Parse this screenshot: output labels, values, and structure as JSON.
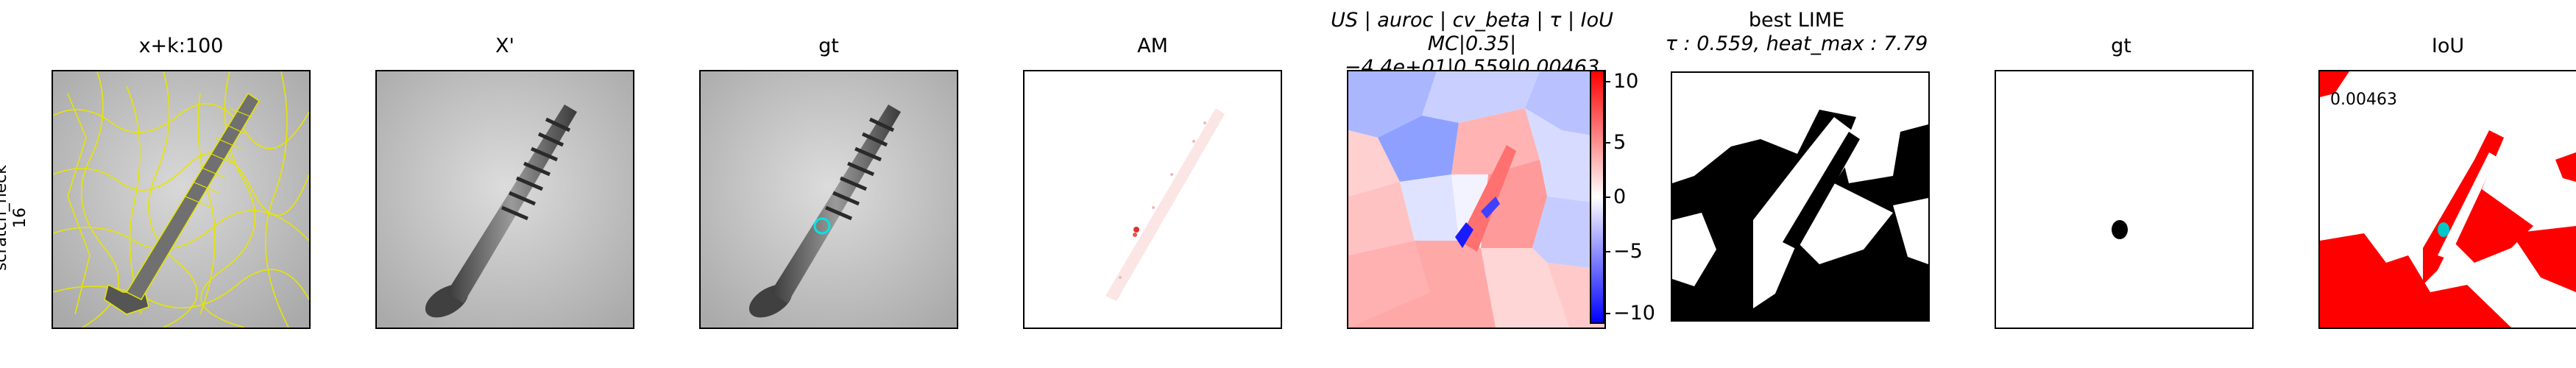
{
  "row_label": {
    "line1": "scratch_neck",
    "line2": "16"
  },
  "panels": [
    {
      "title": "x+k:100"
    },
    {
      "title": "X'"
    },
    {
      "title": "gt"
    },
    {
      "title": "AM"
    },
    {
      "title_line1": "US | auroc | cv_beta | τ | IoU",
      "title_line2": "MC|0.35|−4.4e+01|0.559|0.00463"
    },
    {
      "title_line1": "best LIME",
      "title_line2": "τ : 0.559, heat_max : 7.79"
    },
    {
      "title": "gt"
    },
    {
      "title": "IoU",
      "value": "0.00463"
    }
  ],
  "colorbar": {
    "ticks": [
      "10",
      "5",
      "0",
      "−5",
      "−10"
    ],
    "colors": [
      "#ff0000",
      "#ffffff",
      "#0000ff"
    ]
  },
  "icons": [
    "screw-image",
    "superpixel-overlay",
    "gt-contour-cyan"
  ]
}
